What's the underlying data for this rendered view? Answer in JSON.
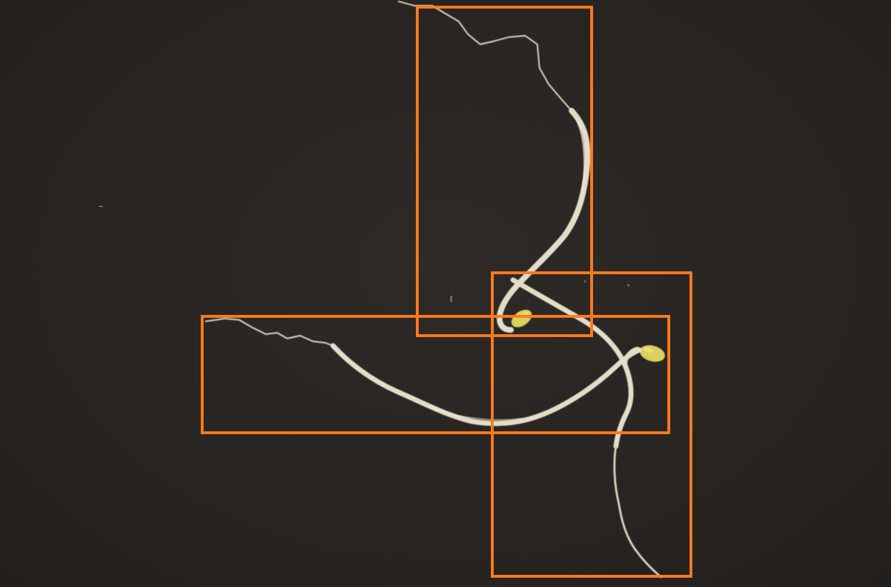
{
  "scene": {
    "background_color": "#2a2624",
    "subject": "bean-sprouts",
    "sprout_color": "#e2dcc6",
    "seed_color": "#d8cf5c"
  },
  "annotations": {
    "box_color": "#ff7a1a",
    "count": 3
  }
}
